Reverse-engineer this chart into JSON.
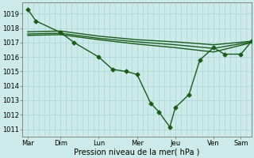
{
  "background_color": "#cceaea",
  "grid_color": "#aed4d4",
  "line_color": "#1a5c1a",
  "x_labels": [
    "Mar",
    "Dim",
    "Lun",
    "Mer",
    "Jeu",
    "Ven",
    "Sam"
  ],
  "ylabel": "Pression niveau de la mer( hPa )",
  "ylim": [
    1010.5,
    1019.8
  ],
  "yticks": [
    1011,
    1012,
    1013,
    1014,
    1015,
    1016,
    1017,
    1018,
    1019
  ],
  "xlim": [
    0,
    84
  ],
  "x_tick_positions": [
    2,
    14,
    28,
    42,
    56,
    70,
    80
  ],
  "series": [
    {
      "x": [
        2,
        5,
        14,
        19,
        28,
        33,
        38,
        42,
        47,
        50,
        54,
        56,
        61,
        65,
        70,
        74,
        80,
        84
      ],
      "y": [
        1019.3,
        1018.5,
        1017.7,
        1017.0,
        1016.0,
        1015.15,
        1015.0,
        1014.8,
        1012.8,
        1012.2,
        1011.15,
        1012.5,
        1013.4,
        1015.8,
        1016.65,
        1016.2,
        1016.2,
        1017.1
      ],
      "has_marker": true,
      "markersize": 2.5,
      "linewidth": 1.0
    },
    {
      "x": [
        2,
        14,
        28,
        42,
        56,
        70,
        84
      ],
      "y": [
        1017.75,
        1017.8,
        1017.45,
        1017.2,
        1017.05,
        1016.85,
        1017.1
      ],
      "has_marker": false,
      "markersize": 0,
      "linewidth": 1.0
    },
    {
      "x": [
        2,
        14,
        28,
        42,
        56,
        70,
        84
      ],
      "y": [
        1017.6,
        1017.65,
        1017.3,
        1017.05,
        1016.85,
        1016.6,
        1017.05
      ],
      "has_marker": false,
      "markersize": 0,
      "linewidth": 1.0
    },
    {
      "x": [
        2,
        14,
        28,
        42,
        56,
        70,
        84
      ],
      "y": [
        1017.5,
        1017.55,
        1017.2,
        1016.9,
        1016.65,
        1016.35,
        1017.0
      ],
      "has_marker": false,
      "markersize": 0,
      "linewidth": 1.0
    }
  ],
  "n_vertical_gridlines": 84,
  "n_horizontal_gridlines": 9,
  "fontsize_ticks": 6,
  "fontsize_xlabel": 7
}
